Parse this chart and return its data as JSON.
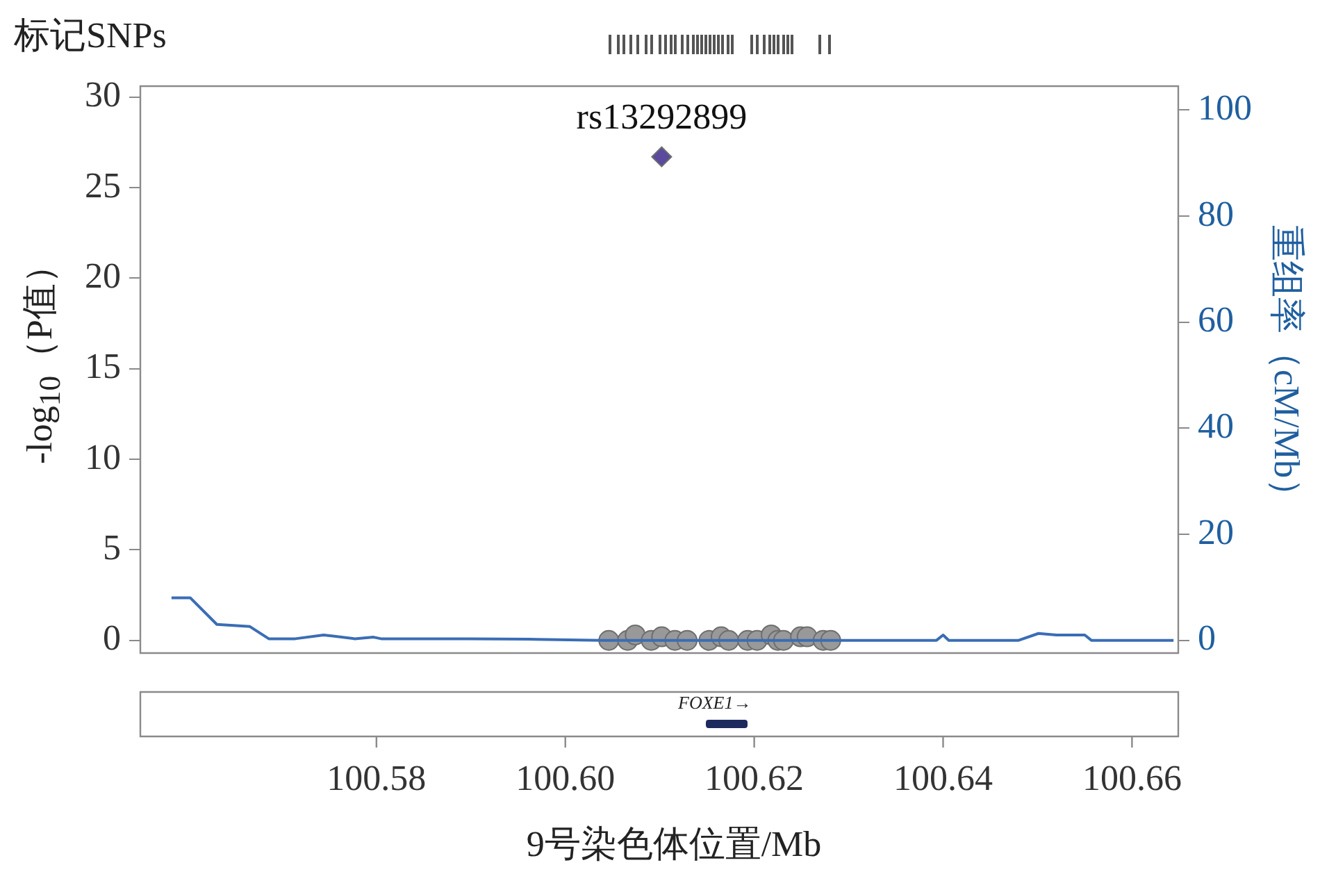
{
  "chart_data": {
    "type": "scatter",
    "title": "标记SNPs",
    "xlabel": "9号染色体位置/Mb",
    "ylabel": "-log$_{10}$（P值）",
    "y2label": "重组率（cM/Mb）",
    "xlim": [
      100.555,
      100.6649
    ],
    "xticks": [
      100.58,
      {
        "value": 100.6,
        "label": "100.60"
      },
      100.62,
      100.64,
      100.66
    ],
    "ylim": [
      -0.7,
      30.6
    ],
    "yticks": [
      0,
      5,
      10,
      15,
      20,
      25,
      30
    ],
    "y2lim": [
      -2.4,
      104.5
    ],
    "y2ticks": [
      0,
      20,
      40,
      60,
      80,
      100
    ],
    "grid": false,
    "legend": false,
    "annotations": [
      {
        "text": "rs13292899",
        "x": 100.6102,
        "y": 26.7
      },
      "FOXE1→"
    ],
    "series": [
      {
        "type": "line",
        "axis": "y2",
        "color": "#3a6db5",
        "marker": "none",
        "x": [
          100.5583,
          100.5603,
          100.5631,
          100.5666,
          100.5686,
          100.5714,
          100.5744,
          100.5754,
          100.5777,
          100.5797,
          100.5805,
          100.5898,
          100.5969,
          100.6038,
          100.6393,
          100.64,
          100.6406,
          100.648,
          100.6501,
          100.652,
          100.655,
          100.6557,
          100.6644
        ],
        "values": [
          8,
          8,
          3,
          2.6,
          0.3,
          0.3,
          1,
          0.8,
          0.3,
          0.6,
          0.3,
          0.3,
          0.2,
          0,
          0,
          1,
          0,
          0,
          1.3,
          1,
          1,
          0,
          0
        ]
      },
      {
        "type": "scatter",
        "color": "#999999",
        "marker": "circle",
        "x": [
          100.6046,
          100.6066,
          100.6074,
          100.6091,
          100.6102,
          100.6116,
          100.6129,
          100.6152,
          100.6165,
          100.6173,
          100.6193,
          100.6203,
          100.6218,
          100.6225,
          100.6231,
          100.6249,
          100.6256,
          100.6273,
          100.6281
        ],
        "values": [
          0,
          0,
          0.3,
          0,
          0.2,
          0,
          0,
          0,
          0.2,
          0,
          0,
          0,
          0.3,
          0,
          0,
          0.2,
          0.2,
          0,
          0
        ]
      },
      {
        "type": "scatter",
        "color": "#5b4a9e",
        "marker": "diamond",
        "x": [
          100.6102
        ],
        "values": [
          26.7
        ]
      }
    ]
  }
}
